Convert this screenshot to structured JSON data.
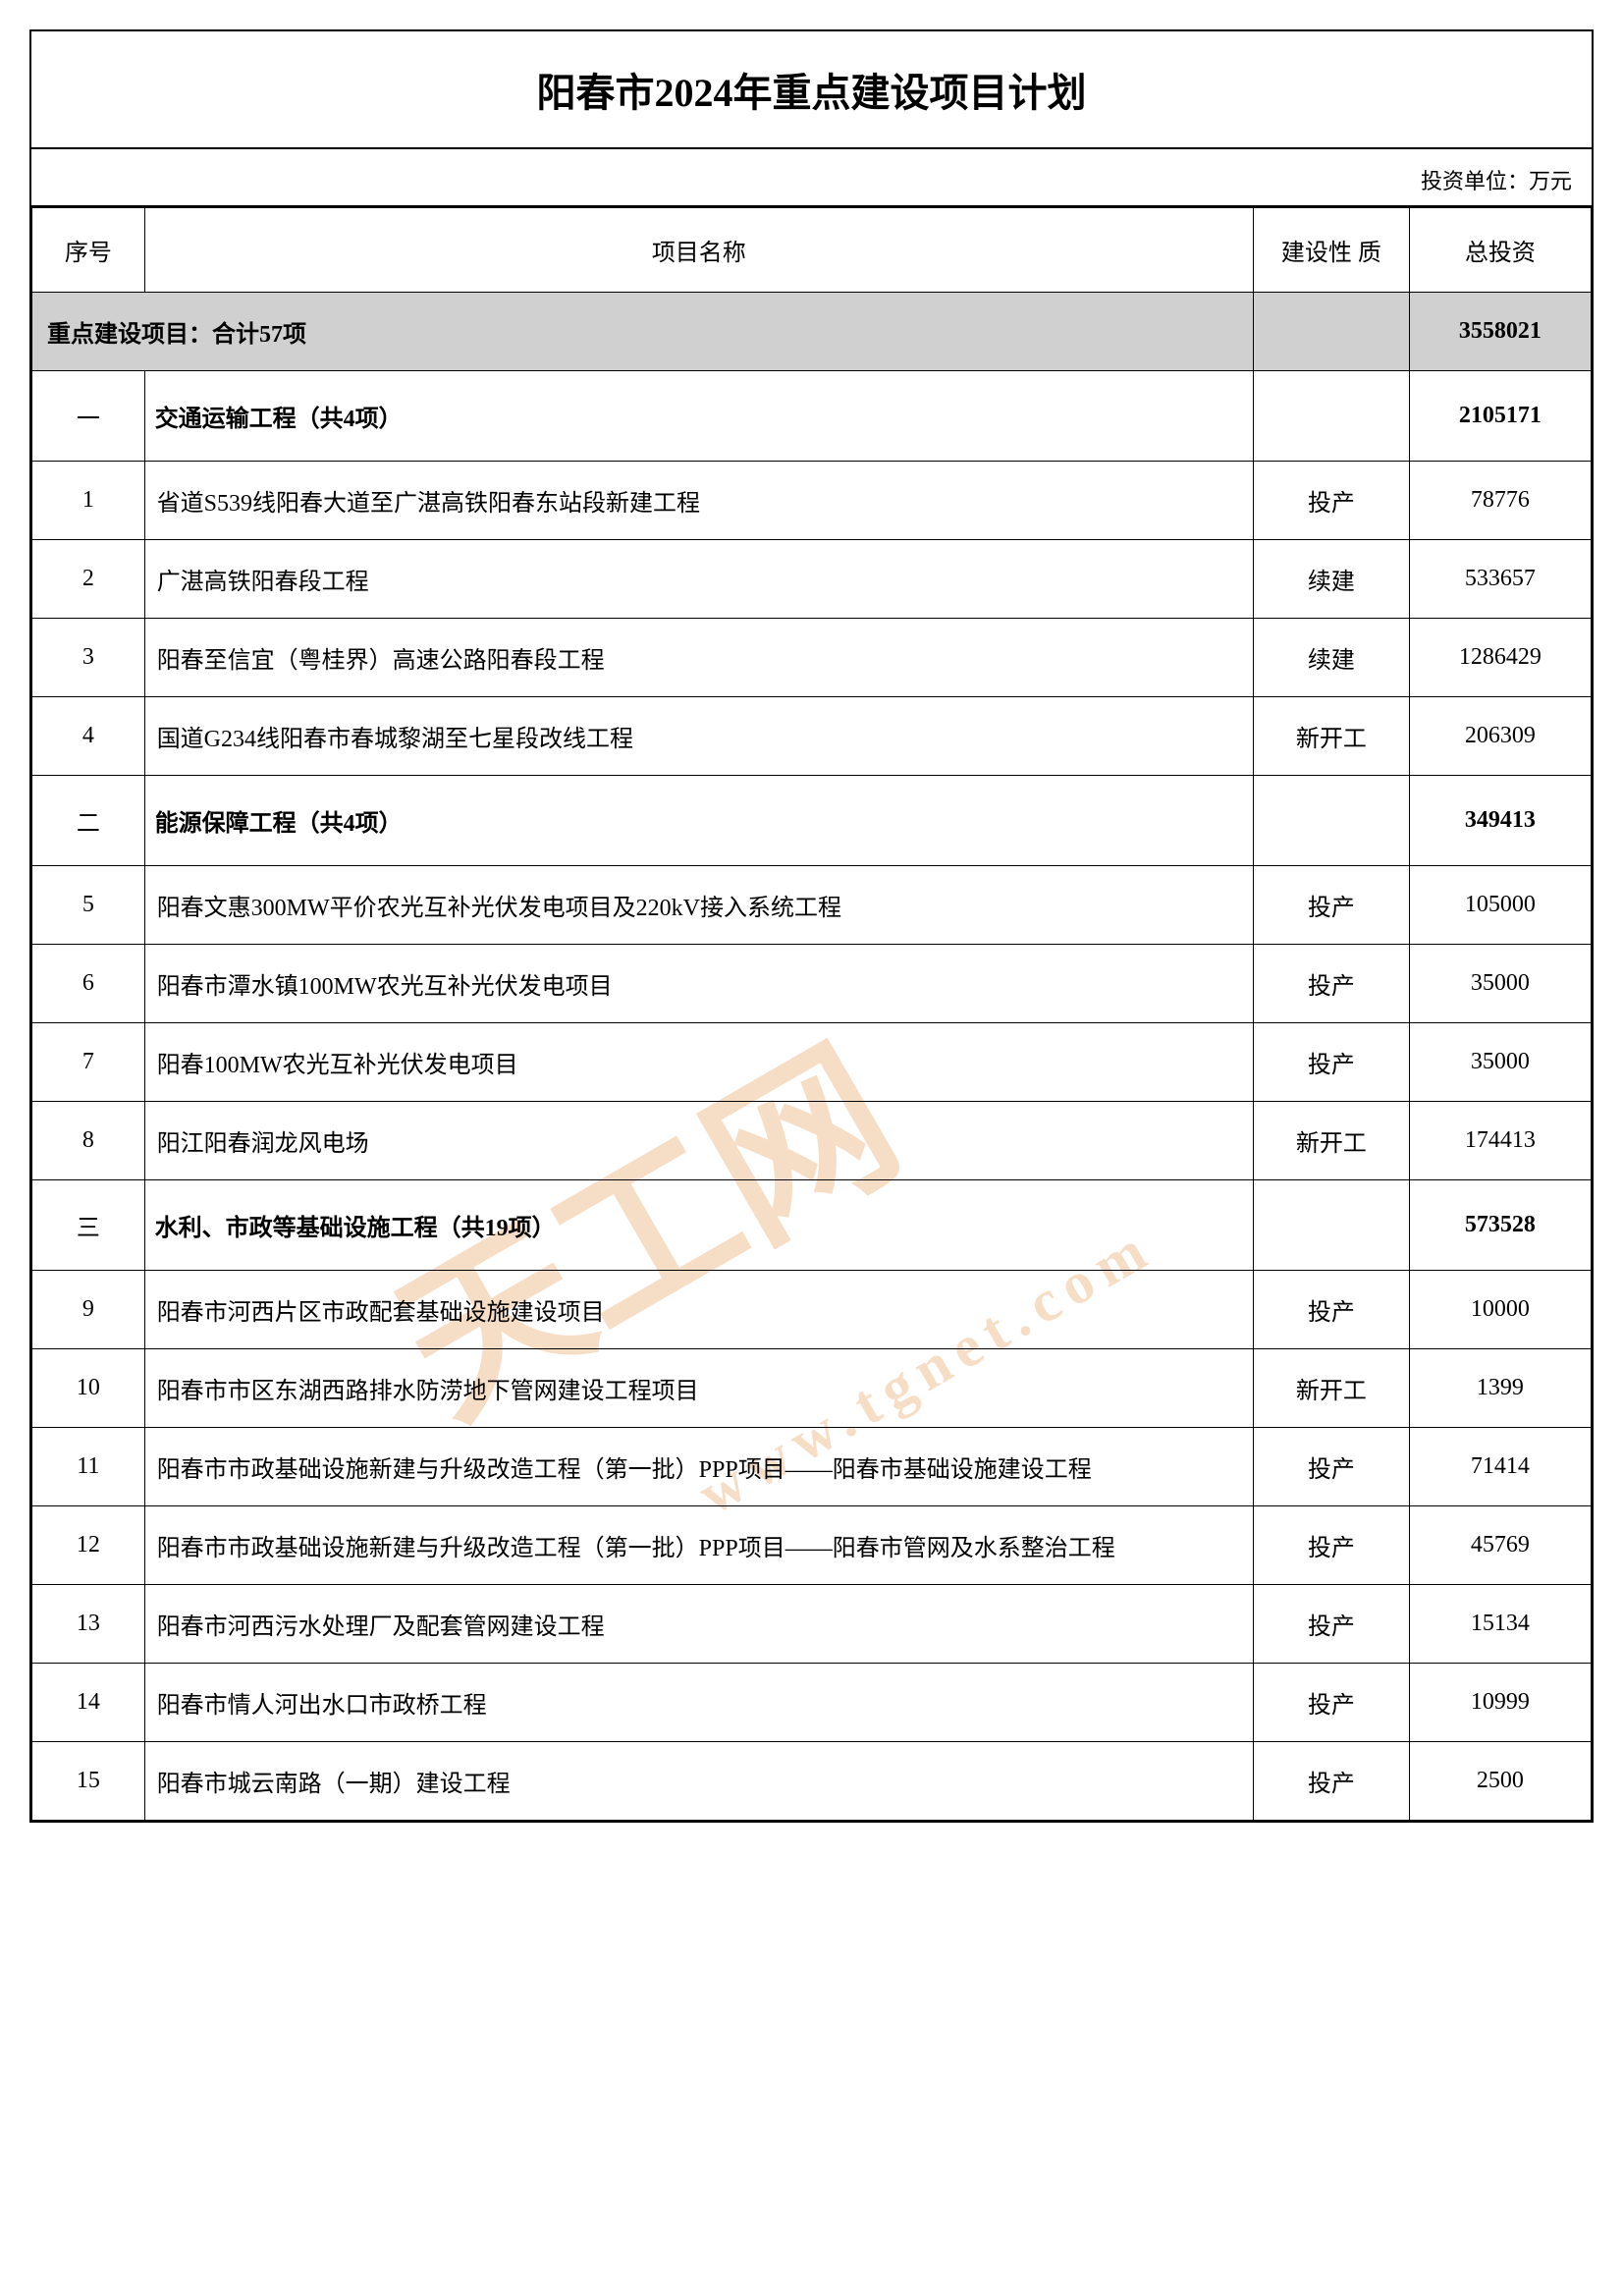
{
  "title": "阳春市2024年重点建设项目计划",
  "unit_label": "投资单位：万元",
  "columns": {
    "seq": "序号",
    "name": "项目名称",
    "nature": "建设性\n质",
    "investment": "总投资"
  },
  "summary": {
    "label": "重点建设项目：合计57项",
    "nature": "",
    "total": "3558021"
  },
  "watermark": {
    "main": "天工网",
    "url": "www.tgnet.com"
  },
  "colors": {
    "border": "#000000",
    "summary_bg": "#d0d0d0",
    "watermark": "#e8a05f",
    "background": "#ffffff"
  },
  "sections": [
    {
      "seq": "一",
      "name": "交通运输工程（共4项）",
      "nature": "",
      "total": "2105171",
      "rows": [
        {
          "seq": "1",
          "name": "省道S539线阳春大道至广湛高铁阳春东站段新建工程",
          "nature": "投产",
          "investment": "78776"
        },
        {
          "seq": "2",
          "name": "广湛高铁阳春段工程",
          "nature": "续建",
          "investment": "533657"
        },
        {
          "seq": "3",
          "name": "阳春至信宜（粤桂界）高速公路阳春段工程",
          "nature": "续建",
          "investment": "1286429"
        },
        {
          "seq": "4",
          "name": "国道G234线阳春市春城黎湖至七星段改线工程",
          "nature": "新开工",
          "investment": "206309"
        }
      ]
    },
    {
      "seq": "二",
      "name": "能源保障工程（共4项）",
      "nature": "",
      "total": "349413",
      "rows": [
        {
          "seq": "5",
          "name": "阳春文惠300MW平价农光互补光伏发电项目及220kV接入系统工程",
          "nature": "投产",
          "investment": "105000"
        },
        {
          "seq": "6",
          "name": "阳春市潭水镇100MW农光互补光伏发电项目",
          "nature": "投产",
          "investment": "35000"
        },
        {
          "seq": "7",
          "name": "阳春100MW农光互补光伏发电项目",
          "nature": "投产",
          "investment": "35000"
        },
        {
          "seq": "8",
          "name": "阳江阳春润龙风电场",
          "nature": "新开工",
          "investment": "174413"
        }
      ]
    },
    {
      "seq": "三",
      "name": "水利、市政等基础设施工程（共19项）",
      "nature": "",
      "total": "573528",
      "rows": [
        {
          "seq": "9",
          "name": "阳春市河西片区市政配套基础设施建设项目",
          "nature": "投产",
          "investment": "10000"
        },
        {
          "seq": "10",
          "name": "阳春市市区东湖西路排水防涝地下管网建设工程项目",
          "nature": "新开工",
          "investment": "1399"
        },
        {
          "seq": "11",
          "name": "阳春市市政基础设施新建与升级改造工程（第一批）PPP项目——阳春市基础设施建设工程",
          "nature": "投产",
          "investment": "71414"
        },
        {
          "seq": "12",
          "name": "阳春市市政基础设施新建与升级改造工程（第一批）PPP项目——阳春市管网及水系整治工程",
          "nature": "投产",
          "investment": "45769"
        },
        {
          "seq": "13",
          "name": "阳春市河西污水处理厂及配套管网建设工程",
          "nature": "投产",
          "investment": "15134"
        },
        {
          "seq": "14",
          "name": "阳春市情人河出水口市政桥工程",
          "nature": "投产",
          "investment": "10999"
        },
        {
          "seq": "15",
          "name": "阳春市城云南路（一期）建设工程",
          "nature": "投产",
          "investment": "2500"
        }
      ]
    }
  ]
}
